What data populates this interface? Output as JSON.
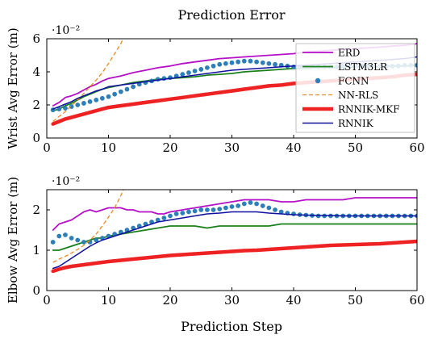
{
  "chart_data": [
    {
      "type": "line",
      "title": "Prediction Error",
      "ylabel": "Wrist Avg Error (m)",
      "xlabel": "",
      "scale_label": "·10⁻²",
      "xlim": [
        0,
        60
      ],
      "ylim": [
        0,
        6
      ],
      "xticks": [
        0,
        10,
        20,
        30,
        40,
        50,
        60
      ],
      "yticks": [
        0,
        2,
        4,
        6
      ],
      "legend_position": "top-right",
      "series": [
        {
          "name": "ERD",
          "color": "#b510c8",
          "style": "solid",
          "width": 1.8,
          "x": [
            1,
            2,
            3,
            4,
            5,
            6,
            7,
            8,
            9,
            10,
            12,
            14,
            16,
            18,
            20,
            22,
            24,
            26,
            28,
            30,
            32,
            34,
            36,
            38,
            40,
            42,
            44,
            46,
            48,
            50,
            52,
            54,
            56,
            58,
            60
          ],
          "y": [
            1.95,
            2.15,
            2.45,
            2.55,
            2.7,
            2.9,
            3.1,
            3.25,
            3.45,
            3.6,
            3.75,
            3.95,
            4.1,
            4.25,
            4.35,
            4.5,
            4.6,
            4.7,
            4.8,
            4.85,
            4.9,
            4.95,
            5.0,
            5.05,
            5.1,
            5.2,
            5.25,
            5.3,
            5.35,
            5.4,
            5.45,
            5.5,
            5.55,
            5.6,
            5.7
          ]
        },
        {
          "name": "LSTM3LR",
          "color": "#1a7f1a",
          "style": "solid",
          "width": 1.8,
          "x": [
            1,
            2,
            3,
            4,
            5,
            6,
            7,
            8,
            9,
            10,
            12,
            14,
            16,
            18,
            20,
            22,
            24,
            26,
            28,
            30,
            32,
            34,
            36,
            38,
            40,
            42,
            44,
            46,
            48,
            50,
            52,
            54,
            56,
            58,
            60
          ],
          "y": [
            1.65,
            1.75,
            1.95,
            2.1,
            2.3,
            2.5,
            2.65,
            2.8,
            2.95,
            3.05,
            3.2,
            3.35,
            3.45,
            3.55,
            3.6,
            3.65,
            3.7,
            3.8,
            3.85,
            3.9,
            4.0,
            4.05,
            4.1,
            4.15,
            4.2,
            4.2,
            4.25,
            4.25,
            4.25,
            4.3,
            4.3,
            4.3,
            4.35,
            4.35,
            4.4
          ]
        },
        {
          "name": "FCNN",
          "color": "#2c7fb8",
          "style": "dots",
          "width": 0,
          "x": [
            1,
            2,
            3,
            4,
            5,
            6,
            7,
            8,
            9,
            10,
            11,
            12,
            13,
            14,
            15,
            16,
            17,
            18,
            19,
            20,
            21,
            22,
            23,
            24,
            25,
            26,
            27,
            28,
            29,
            30,
            31,
            32,
            33,
            34,
            35,
            36,
            37,
            38,
            39,
            40,
            41,
            42,
            43,
            44,
            45,
            46,
            47,
            48,
            49,
            50,
            51,
            52,
            53,
            54,
            55,
            56,
            57,
            58,
            59,
            60
          ],
          "y": [
            1.7,
            1.75,
            1.8,
            1.9,
            2.0,
            2.1,
            2.2,
            2.3,
            2.4,
            2.5,
            2.65,
            2.8,
            2.95,
            3.1,
            3.25,
            3.35,
            3.45,
            3.55,
            3.6,
            3.65,
            3.75,
            3.85,
            3.95,
            4.05,
            4.15,
            4.25,
            4.35,
            4.45,
            4.5,
            4.55,
            4.6,
            4.65,
            4.65,
            4.6,
            4.55,
            4.5,
            4.45,
            4.4,
            4.35,
            4.3,
            4.3,
            4.3,
            4.3,
            4.3,
            4.3,
            4.3,
            4.3,
            4.35,
            4.35,
            4.35,
            4.35,
            4.35,
            4.35,
            4.35,
            4.35,
            4.35,
            4.35,
            4.4,
            4.4,
            4.4
          ]
        },
        {
          "name": "NN-RLS",
          "color": "#f08a24",
          "style": "dashed",
          "width": 1.3,
          "x": [
            1,
            2,
            3,
            4,
            5,
            6,
            7,
            8,
            9,
            10,
            11,
            12,
            12.5
          ],
          "y": [
            1.0,
            1.3,
            1.6,
            1.95,
            2.3,
            2.7,
            3.1,
            3.5,
            3.95,
            4.5,
            5.1,
            5.7,
            6.1
          ]
        },
        {
          "name": "RNNIK-MKF",
          "color": "#ee2222",
          "style": "solid",
          "width": 4.5,
          "x": [
            1,
            2,
            3,
            4,
            5,
            6,
            7,
            8,
            9,
            10,
            12,
            14,
            16,
            18,
            20,
            22,
            24,
            26,
            28,
            30,
            32,
            34,
            36,
            38,
            40,
            42,
            44,
            46,
            48,
            50,
            52,
            54,
            56,
            58,
            60
          ],
          "y": [
            0.85,
            1.0,
            1.15,
            1.25,
            1.35,
            1.45,
            1.55,
            1.65,
            1.75,
            1.85,
            1.95,
            2.05,
            2.15,
            2.25,
            2.35,
            2.45,
            2.55,
            2.65,
            2.75,
            2.85,
            2.95,
            3.05,
            3.15,
            3.2,
            3.3,
            3.35,
            3.4,
            3.45,
            3.5,
            3.55,
            3.6,
            3.65,
            3.7,
            3.8,
            3.85
          ]
        },
        {
          "name": "RNNIK",
          "color": "#1010a0",
          "style": "solid",
          "width": 1.5,
          "x": [
            1,
            2,
            3,
            4,
            5,
            6,
            7,
            8,
            9,
            10,
            12,
            14,
            16,
            18,
            20,
            22,
            24,
            26,
            28,
            30,
            32,
            34,
            36,
            38,
            40,
            42,
            44,
            46,
            48,
            50,
            52,
            54,
            56,
            58,
            60
          ],
          "y": [
            1.75,
            1.9,
            2.05,
            2.2,
            2.4,
            2.55,
            2.7,
            2.85,
            2.95,
            3.1,
            3.2,
            3.3,
            3.4,
            3.5,
            3.6,
            3.7,
            3.8,
            3.9,
            4.0,
            4.1,
            4.15,
            4.2,
            4.25,
            4.3,
            4.35,
            4.4,
            4.45,
            4.5,
            4.55,
            4.6,
            4.65,
            4.7,
            4.75,
            4.8,
            4.9
          ]
        }
      ]
    },
    {
      "type": "line",
      "title": "",
      "ylabel": "Elbow Avg Error (m)",
      "xlabel": "Prediction Step",
      "scale_label": "·10⁻²",
      "xlim": [
        0,
        60
      ],
      "ylim": [
        0,
        2.5
      ],
      "xticks": [
        0,
        10,
        20,
        30,
        40,
        50,
        60
      ],
      "yticks": [
        0,
        1,
        2
      ],
      "series": [
        {
          "name": "ERD",
          "color": "#b510c8",
          "style": "solid",
          "width": 1.8,
          "x": [
            1,
            2,
            3,
            4,
            5,
            6,
            7,
            8,
            9,
            10,
            11,
            12,
            13,
            14,
            15,
            16,
            17,
            18,
            19,
            20,
            22,
            24,
            26,
            28,
            30,
            32,
            34,
            36,
            38,
            40,
            42,
            44,
            46,
            48,
            50,
            52,
            54,
            56,
            58,
            60
          ],
          "y": [
            1.5,
            1.65,
            1.7,
            1.75,
            1.85,
            1.95,
            2.0,
            1.95,
            2.0,
            2.05,
            2.05,
            2.05,
            2.0,
            2.0,
            1.95,
            1.95,
            1.95,
            1.9,
            1.9,
            1.95,
            2.0,
            2.05,
            2.1,
            2.15,
            2.2,
            2.25,
            2.25,
            2.25,
            2.2,
            2.2,
            2.25,
            2.25,
            2.25,
            2.25,
            2.3,
            2.3,
            2.3,
            2.3,
            2.3,
            2.3
          ]
        },
        {
          "name": "LSTM3LR",
          "color": "#1a7f1a",
          "style": "solid",
          "width": 1.8,
          "x": [
            1,
            2,
            3,
            4,
            5,
            6,
            7,
            8,
            9,
            10,
            12,
            14,
            16,
            18,
            20,
            22,
            24,
            26,
            28,
            30,
            32,
            34,
            36,
            38,
            40,
            42,
            44,
            46,
            48,
            50,
            52,
            54,
            56,
            58,
            60
          ],
          "y": [
            1.0,
            1.0,
            1.05,
            1.1,
            1.15,
            1.2,
            1.25,
            1.3,
            1.3,
            1.35,
            1.4,
            1.45,
            1.5,
            1.55,
            1.6,
            1.6,
            1.6,
            1.55,
            1.6,
            1.6,
            1.6,
            1.6,
            1.6,
            1.65,
            1.65,
            1.65,
            1.65,
            1.65,
            1.65,
            1.65,
            1.65,
            1.65,
            1.65,
            1.65,
            1.65
          ]
        },
        {
          "name": "FCNN",
          "color": "#2c7fb8",
          "style": "dots",
          "width": 0,
          "x": [
            1,
            2,
            3,
            4,
            5,
            6,
            7,
            8,
            9,
            10,
            11,
            12,
            13,
            14,
            15,
            16,
            17,
            18,
            19,
            20,
            21,
            22,
            23,
            24,
            25,
            26,
            27,
            28,
            29,
            30,
            31,
            32,
            33,
            34,
            35,
            36,
            37,
            38,
            39,
            40,
            41,
            42,
            43,
            44,
            45,
            46,
            47,
            48,
            49,
            50,
            51,
            52,
            53,
            54,
            55,
            56,
            57,
            58,
            59,
            60
          ],
          "y": [
            1.2,
            1.35,
            1.38,
            1.3,
            1.25,
            1.2,
            1.2,
            1.25,
            1.3,
            1.35,
            1.4,
            1.45,
            1.5,
            1.55,
            1.6,
            1.65,
            1.7,
            1.75,
            1.8,
            1.85,
            1.9,
            1.92,
            1.95,
            1.97,
            2.0,
            2.0,
            2.0,
            2.02,
            2.05,
            2.08,
            2.1,
            2.15,
            2.18,
            2.15,
            2.1,
            2.05,
            2.0,
            1.95,
            1.92,
            1.9,
            1.88,
            1.87,
            1.86,
            1.85,
            1.85,
            1.85,
            1.85,
            1.85,
            1.85,
            1.85,
            1.85,
            1.85,
            1.85,
            1.85,
            1.85,
            1.85,
            1.85,
            1.85,
            1.85,
            1.85
          ]
        },
        {
          "name": "NN-RLS",
          "color": "#f08a24",
          "style": "dashed",
          "width": 1.3,
          "x": [
            1,
            2,
            3,
            4,
            5,
            6,
            7,
            8,
            9,
            10,
            11,
            12,
            12.5
          ],
          "y": [
            0.7,
            0.78,
            0.85,
            0.93,
            1.02,
            1.12,
            1.25,
            1.4,
            1.6,
            1.82,
            2.05,
            2.35,
            2.55
          ]
        },
        {
          "name": "RNNIK-MKF",
          "color": "#ee2222",
          "style": "solid",
          "width": 4.5,
          "x": [
            1,
            2,
            3,
            4,
            5,
            6,
            7,
            8,
            9,
            10,
            12,
            14,
            16,
            18,
            20,
            22,
            24,
            26,
            28,
            30,
            32,
            34,
            36,
            38,
            40,
            42,
            44,
            46,
            48,
            50,
            52,
            54,
            56,
            58,
            60
          ],
          "y": [
            0.48,
            0.53,
            0.57,
            0.6,
            0.62,
            0.64,
            0.66,
            0.68,
            0.7,
            0.72,
            0.75,
            0.78,
            0.81,
            0.84,
            0.87,
            0.89,
            0.91,
            0.93,
            0.95,
            0.97,
            0.99,
            1.0,
            1.02,
            1.04,
            1.06,
            1.08,
            1.1,
            1.12,
            1.13,
            1.14,
            1.15,
            1.16,
            1.18,
            1.2,
            1.22
          ]
        },
        {
          "name": "RNNIK",
          "color": "#1010a0",
          "style": "solid",
          "width": 1.5,
          "x": [
            1,
            2,
            3,
            4,
            5,
            6,
            7,
            8,
            9,
            10,
            12,
            14,
            16,
            18,
            20,
            22,
            24,
            26,
            28,
            30,
            32,
            34,
            36,
            38,
            40,
            42,
            44,
            46,
            48,
            50,
            52,
            54,
            56,
            58,
            60
          ],
          "y": [
            0.55,
            0.6,
            0.7,
            0.8,
            0.9,
            1.0,
            1.1,
            1.18,
            1.25,
            1.3,
            1.4,
            1.5,
            1.6,
            1.7,
            1.75,
            1.8,
            1.85,
            1.9,
            1.92,
            1.95,
            1.95,
            1.95,
            1.92,
            1.9,
            1.88,
            1.87,
            1.86,
            1.86,
            1.85,
            1.85,
            1.85,
            1.85,
            1.85,
            1.85,
            1.85
          ]
        }
      ]
    }
  ]
}
